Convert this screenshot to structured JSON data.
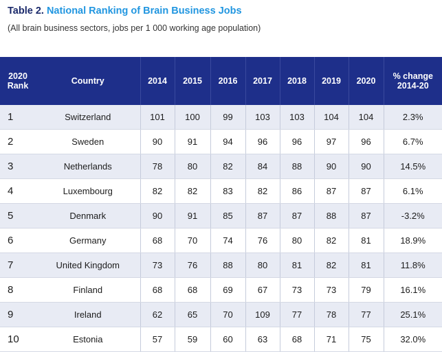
{
  "title": {
    "label": "Table 2.",
    "name": "National Ranking of Brain Business Jobs"
  },
  "subtitle": "(All brain business sectors, jobs per 1 000 working age population)",
  "table": {
    "headers": {
      "rank_line1": "2020",
      "rank_line2": "Rank",
      "country": "Country",
      "y2014": "2014",
      "y2015": "2015",
      "y2016": "2016",
      "y2017": "2017",
      "y2018": "2018",
      "y2019": "2019",
      "y2020": "2020",
      "change_line1": "% change",
      "change_line2": "2014-20"
    },
    "rows": [
      {
        "rank": "1",
        "country": "Switzerland",
        "y2014": "101",
        "y2015": "100",
        "y2016": "99",
        "y2017": "103",
        "y2018": "103",
        "y2019": "104",
        "y2020": "104",
        "change": "2.3%"
      },
      {
        "rank": "2",
        "country": "Sweden",
        "y2014": "90",
        "y2015": "91",
        "y2016": "94",
        "y2017": "96",
        "y2018": "96",
        "y2019": "97",
        "y2020": "96",
        "change": "6.7%"
      },
      {
        "rank": "3",
        "country": "Netherlands",
        "y2014": "78",
        "y2015": "80",
        "y2016": "82",
        "y2017": "84",
        "y2018": "88",
        "y2019": "90",
        "y2020": "90",
        "change": "14.5%"
      },
      {
        "rank": "4",
        "country": "Luxembourg",
        "y2014": "82",
        "y2015": "82",
        "y2016": "83",
        "y2017": "82",
        "y2018": "86",
        "y2019": "87",
        "y2020": "87",
        "change": "6.1%"
      },
      {
        "rank": "5",
        "country": "Denmark",
        "y2014": "90",
        "y2015": "91",
        "y2016": "85",
        "y2017": "87",
        "y2018": "87",
        "y2019": "88",
        "y2020": "87",
        "change": "-3.2%"
      },
      {
        "rank": "6",
        "country": "Germany",
        "y2014": "68",
        "y2015": "70",
        "y2016": "74",
        "y2017": "76",
        "y2018": "80",
        "y2019": "82",
        "y2020": "81",
        "change": "18.9%"
      },
      {
        "rank": "7",
        "country": "United Kingdom",
        "y2014": "73",
        "y2015": "76",
        "y2016": "88",
        "y2017": "80",
        "y2018": "81",
        "y2019": "82",
        "y2020": "81",
        "change": "11.8%"
      },
      {
        "rank": "8",
        "country": "Finland",
        "y2014": "68",
        "y2015": "68",
        "y2016": "69",
        "y2017": "67",
        "y2018": "73",
        "y2019": "73",
        "y2020": "79",
        "change": "16.1%"
      },
      {
        "rank": "9",
        "country": "Ireland",
        "y2014": "62",
        "y2015": "65",
        "y2016": "70",
        "y2017": "109",
        "y2018": "77",
        "y2019": "78",
        "y2020": "77",
        "change": "25.1%"
      },
      {
        "rank": "10",
        "country": "Estonia",
        "y2014": "57",
        "y2015": "59",
        "y2016": "60",
        "y2017": "63",
        "y2018": "68",
        "y2019": "71",
        "y2020": "75",
        "change": "32.0%"
      }
    ]
  },
  "colors": {
    "header_bg": "#1e2f8a",
    "title_label": "#1b2a6b",
    "title_name": "#2196e0",
    "stripe": "#e8ebf4"
  }
}
